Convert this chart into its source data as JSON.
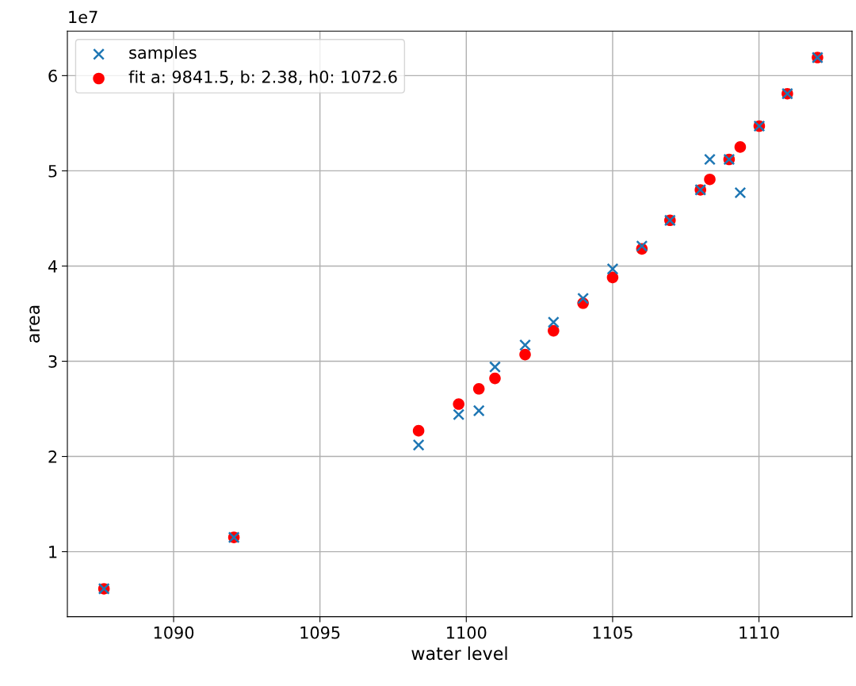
{
  "chart_data": {
    "type": "scatter",
    "xlabel": "water level",
    "ylabel": "area",
    "annotations": [
      "1e7"
    ],
    "x": [
      1087.62,
      1092.06,
      1098.37,
      1099.74,
      1100.43,
      1100.98,
      1102.01,
      1102.98,
      1103.99,
      1105.0,
      1106.0,
      1106.96,
      1108.0,
      1108.32,
      1108.98,
      1109.36,
      1110.01,
      1110.97,
      1112.0
    ],
    "series": [
      {
        "name": "samples",
        "color": "#1f77b4",
        "marker": "cross",
        "values": [
          0.61,
          1.15,
          2.12,
          2.44,
          2.48,
          2.94,
          3.17,
          3.41,
          3.66,
          3.97,
          4.21,
          4.48,
          4.8,
          5.12,
          5.12,
          4.77,
          5.47,
          5.81,
          6.19
        ]
      },
      {
        "name": "fit a: 9841.5, b: 2.38, h0: 1072.6",
        "color": "#ff0000",
        "marker": "circle",
        "values": [
          0.61,
          1.15,
          2.27,
          2.55,
          2.71,
          2.82,
          3.07,
          3.32,
          3.61,
          3.88,
          4.18,
          4.48,
          4.8,
          4.91,
          5.12,
          5.25,
          5.47,
          5.81,
          6.19
        ]
      }
    ],
    "xlim": [
      1086.37,
      1113.18
    ],
    "xticks": [
      1090,
      1095,
      1100,
      1105,
      1110
    ],
    "ylim": [
      0.317,
      6.467
    ],
    "yticks": [
      1,
      2,
      3,
      4,
      5,
      6
    ],
    "grid": true,
    "legend": "top left"
  }
}
